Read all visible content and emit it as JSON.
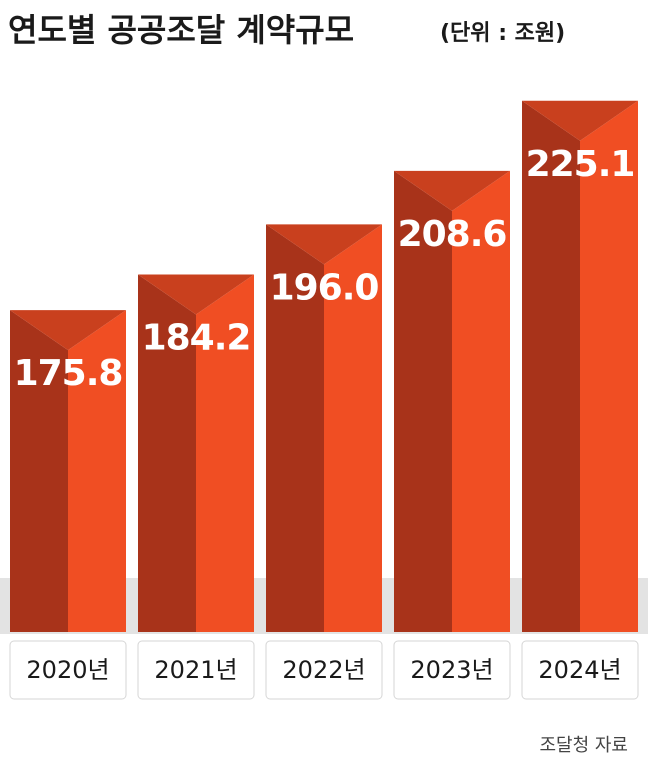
{
  "chart_data": {
    "type": "bar3d",
    "title": "연도별 공공조달 계약규모",
    "subtitle": "(단위 : 조원)",
    "categories": [
      "2020년",
      "2021년",
      "2022년",
      "2023년",
      "2024년"
    ],
    "values": [
      175.8,
      184.2,
      196.0,
      208.6,
      225.1
    ],
    "value_labels": [
      "175.8",
      "184.2",
      "196.0",
      "208.6",
      "225.1"
    ],
    "colors": {
      "front": "#f04e23",
      "side": "#a8331a",
      "top": "#c9401e"
    },
    "ylim": [
      100,
      230
    ],
    "source": "조달청 자료"
  }
}
